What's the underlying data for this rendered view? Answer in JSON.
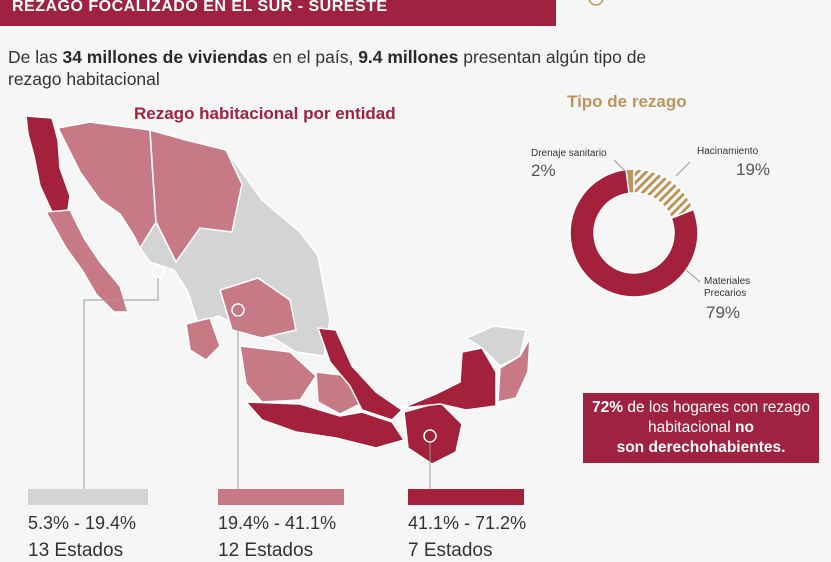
{
  "header": {
    "title": "REZAGO FOCALIZADO EN EL SUR - SURESTE"
  },
  "intro": {
    "p1": "De las ",
    "b1": "34 millones de viviendas",
    "p2": " en el país, ",
    "b2": "9.4 millones",
    "p3": " presentan algún tipo de rezago habitacional"
  },
  "chart_data": [
    {
      "type": "choropleth-map",
      "title": "Rezago habitacional por entidad",
      "legend": [
        {
          "range": "5.3% - 19.4%",
          "count": "13 Estados",
          "color": "#d4d4d4"
        },
        {
          "range": "19.4% - 41.1%",
          "count": "12 Estados",
          "color": "#c77a86"
        },
        {
          "range": "41.1% - 71.2%",
          "count": "7 Estados",
          "color": "#a3213b"
        }
      ]
    },
    {
      "type": "pie",
      "title": "Tipo de rezago",
      "categories": [
        "Materiales Precarios",
        "Drenaje sanitario",
        "Hacinamiento"
      ],
      "values": [
        79,
        2,
        19
      ],
      "labels": [
        "79%",
        "2%",
        "19%"
      ],
      "colors": [
        "#a3213b",
        "#bc955c",
        "#bc955c"
      ]
    }
  ],
  "callout": {
    "b1": "72%",
    "p1": " de los hogares con rezago habitacional ",
    "b2": "no",
    "b3": "son derechohabientes."
  }
}
